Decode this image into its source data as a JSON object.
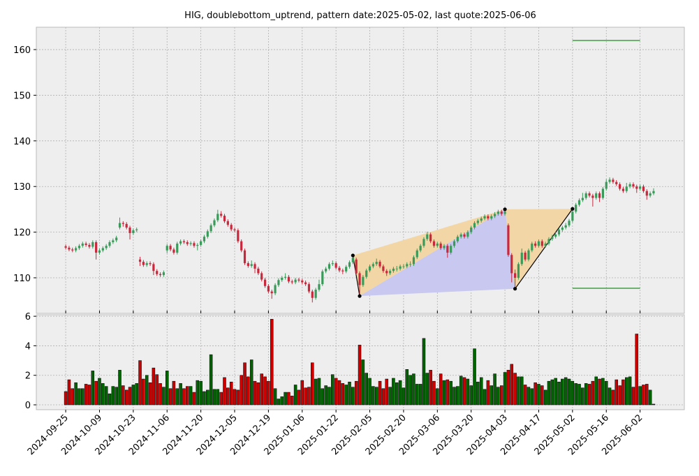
{
  "chart_data": {
    "type": "candlestick",
    "title": "HIG, doublebottom_uptrend, pattern date:2025-05-02, last quote:2025-06-06",
    "categories": [
      "2024-09-25",
      null,
      null,
      null,
      null,
      null,
      null,
      null,
      null,
      null,
      "2024-10-09",
      null,
      null,
      null,
      null,
      null,
      null,
      null,
      null,
      null,
      "2024-10-23",
      null,
      null,
      null,
      null,
      null,
      null,
      null,
      null,
      null,
      "2024-11-06",
      null,
      null,
      null,
      null,
      null,
      null,
      null,
      null,
      null,
      "2024-11-20",
      null,
      null,
      null,
      null,
      null,
      null,
      null,
      null,
      null,
      "2024-12-05",
      null,
      null,
      null,
      null,
      null,
      null,
      null,
      null,
      null,
      "2024-12-19",
      null,
      null,
      null,
      null,
      null,
      null,
      null,
      null,
      null,
      "2025-01-06",
      null,
      null,
      null,
      null,
      null,
      null,
      null,
      null,
      null,
      "2025-01-22",
      null,
      null,
      null,
      null,
      null,
      null,
      null,
      null,
      null,
      "2025-02-05",
      null,
      null,
      null,
      null,
      null,
      null,
      null,
      null,
      null,
      "2025-02-20",
      null,
      null,
      null,
      null,
      null,
      null,
      null,
      null,
      null,
      "2025-03-06",
      null,
      null,
      null,
      null,
      null,
      null,
      null,
      null,
      null,
      "2025-03-20",
      null,
      null,
      null,
      null,
      null,
      null,
      null,
      null,
      null,
      "2025-04-03",
      null,
      null,
      null,
      null,
      null,
      null,
      null,
      null,
      null,
      "2025-04-17",
      null,
      null,
      null,
      null,
      null,
      null,
      null,
      null,
      null,
      "2025-05-02",
      null,
      null,
      null,
      null,
      null,
      null,
      null,
      null,
      null,
      "2025-05-16",
      null,
      null,
      null,
      null,
      null,
      null,
      null,
      null,
      null,
      "2025-06-02",
      null,
      null,
      null,
      null
    ],
    "open": [
      116.9,
      116.6,
      116.2,
      116.0,
      116.5,
      117.0,
      117.5,
      117.2,
      116.8,
      117.8,
      115.5,
      116.0,
      116.5,
      117.0,
      117.8,
      118.2,
      121.0,
      122.0,
      121.8,
      121.0,
      119.8,
      120.4,
      114.0,
      113.5,
      112.8,
      113.2,
      113.0,
      111.5,
      110.8,
      110.6,
      116.0,
      117.0,
      116.2,
      115.5,
      117.5,
      118.0,
      117.8,
      117.4,
      117.6,
      117.0,
      117.2,
      118.0,
      119.0,
      120.2,
      121.5,
      122.6,
      124.0,
      123.6,
      122.4,
      121.6,
      120.6,
      120.4,
      118.0,
      116.0,
      113.2,
      112.6,
      113.0,
      112.0,
      111.0,
      109.6,
      108.2,
      107.0,
      106.6,
      108.4,
      109.5,
      110.0,
      110.2,
      109.2,
      109.0,
      109.6,
      109.4,
      109.0,
      108.6,
      107.0,
      105.6,
      107.4,
      108.6,
      111.4,
      112.0,
      113.0,
      113.2,
      112.2,
      111.6,
      111.4,
      112.4,
      113.4,
      114.0,
      111.0,
      108.4,
      110.2,
      111.6,
      112.5,
      113.0,
      113.5,
      112.5,
      111.5,
      111.0,
      111.5,
      112.0,
      112.0,
      112.5,
      112.5,
      113.0,
      113.0,
      114.5,
      116.0,
      117.0,
      118.5,
      119.5,
      118.0,
      117.0,
      117.5,
      116.5,
      117.0,
      115.5,
      117.0,
      118.0,
      119.0,
      119.5,
      119.0,
      120.0,
      121.0,
      122.0,
      122.5,
      123.0,
      123.5,
      123.0,
      123.5,
      124.0,
      124.5,
      124.0,
      121.5,
      115.0,
      111.0,
      110.0,
      113.0,
      115.5,
      114.0,
      116.0,
      117.5,
      117.0,
      118.0,
      117.0,
      117.5,
      118.5,
      119.0,
      119.5,
      120.5,
      121.0,
      121.5,
      122.5,
      124.5,
      126.0,
      127.0,
      127.5,
      128.5,
      128.0,
      127.5,
      128.5,
      127.5,
      129.5,
      131.0,
      131.5,
      131.0,
      130.5,
      129.5,
      129.0,
      130.0,
      130.5,
      130.0,
      129.5,
      130.0,
      129.0,
      128.0,
      128.5
    ],
    "high": [
      117.3,
      117.0,
      116.6,
      116.9,
      117.4,
      117.9,
      117.9,
      117.6,
      118.2,
      118.2,
      116.4,
      116.9,
      117.4,
      118.2,
      118.6,
      119.2,
      123.2,
      122.4,
      122.2,
      121.4,
      120.8,
      121.0,
      114.6,
      113.9,
      113.6,
      113.6,
      113.4,
      111.9,
      111.2,
      111.6,
      117.4,
      117.4,
      116.6,
      117.9,
      118.4,
      118.4,
      118.2,
      118.0,
      118.0,
      117.6,
      118.4,
      119.4,
      120.6,
      121.9,
      123.0,
      124.9,
      124.6,
      124.0,
      122.8,
      122.0,
      121.0,
      120.8,
      118.4,
      116.4,
      113.6,
      113.8,
      113.4,
      112.4,
      111.4,
      110.0,
      108.6,
      107.4,
      108.8,
      109.9,
      110.4,
      111.0,
      110.6,
      109.6,
      110.0,
      110.0,
      109.8,
      109.4,
      109.0,
      107.4,
      107.8,
      109.6,
      111.8,
      112.4,
      113.4,
      113.8,
      113.6,
      112.6,
      112.0,
      112.8,
      113.8,
      114.9,
      114.4,
      111.4,
      110.6,
      112.0,
      112.9,
      113.4,
      114.2,
      113.9,
      112.9,
      111.9,
      111.9,
      112.4,
      112.6,
      112.9,
      113.0,
      113.4,
      113.6,
      114.9,
      116.4,
      117.4,
      118.9,
      120.1,
      119.9,
      118.4,
      117.9,
      117.9,
      117.4,
      117.4,
      117.4,
      118.4,
      119.4,
      119.9,
      119.9,
      120.4,
      121.4,
      122.4,
      122.9,
      123.4,
      123.9,
      123.9,
      123.9,
      124.4,
      124.9,
      124.9,
      125.0,
      121.9,
      115.4,
      111.8,
      113.4,
      116.4,
      115.9,
      116.4,
      117.9,
      118.0,
      118.4,
      118.4,
      117.9,
      118.9,
      119.4,
      120.0,
      120.9,
      121.4,
      122.0,
      122.9,
      125.1,
      126.4,
      127.4,
      128.6,
      128.9,
      128.9,
      128.4,
      128.9,
      128.9,
      129.9,
      131.6,
      132.0,
      131.9,
      131.4,
      130.9,
      129.9,
      130.8,
      130.9,
      130.9,
      130.4,
      130.4,
      130.4,
      129.4,
      128.9,
      129.6
    ],
    "low": [
      116.2,
      115.8,
      115.6,
      115.6,
      116.1,
      116.6,
      116.8,
      116.4,
      116.4,
      114.0,
      115.1,
      115.6,
      116.1,
      116.6,
      117.4,
      117.8,
      120.6,
      121.2,
      120.6,
      118.4,
      119.4,
      120.0,
      112.6,
      112.4,
      112.4,
      112.6,
      110.6,
      110.4,
      110.2,
      110.2,
      115.4,
      115.8,
      115.1,
      115.1,
      117.1,
      117.4,
      117.0,
      117.0,
      116.6,
      116.0,
      116.8,
      117.6,
      118.6,
      119.8,
      121.1,
      122.2,
      123.2,
      122.0,
      121.2,
      120.2,
      120.0,
      117.6,
      115.6,
      112.8,
      112.2,
      112.2,
      111.0,
      110.6,
      109.2,
      107.8,
      106.6,
      105.4,
      106.2,
      108.0,
      109.1,
      109.6,
      108.8,
      108.6,
      108.6,
      109.0,
      108.6,
      108.2,
      106.6,
      104.6,
      105.2,
      107.0,
      108.2,
      111.0,
      111.6,
      112.6,
      111.8,
      111.2,
      110.8,
      111.0,
      112.0,
      113.0,
      110.6,
      106.0,
      108.0,
      109.8,
      111.2,
      112.1,
      112.6,
      112.1,
      111.1,
      110.4,
      110.6,
      111.1,
      111.4,
      111.6,
      112.0,
      112.1,
      112.4,
      112.6,
      114.1,
      115.6,
      116.6,
      118.1,
      117.6,
      116.6,
      116.6,
      116.1,
      116.1,
      114.4,
      115.1,
      116.6,
      117.6,
      118.6,
      118.6,
      118.6,
      119.6,
      120.6,
      121.6,
      122.1,
      122.6,
      122.6,
      122.6,
      123.1,
      123.6,
      123.6,
      123.6,
      114.6,
      109.0,
      107.6,
      109.6,
      112.6,
      113.6,
      113.6,
      115.6,
      116.6,
      116.6,
      116.6,
      116.6,
      117.1,
      118.1,
      118.6,
      119.1,
      120.1,
      120.6,
      121.1,
      122.1,
      124.1,
      125.6,
      126.6,
      127.1,
      127.6,
      125.6,
      127.1,
      126.6,
      127.1,
      129.1,
      130.6,
      130.6,
      130.1,
      129.1,
      128.6,
      128.6,
      129.6,
      129.6,
      128.6,
      129.1,
      128.6,
      127.1,
      127.6,
      128.1
    ],
    "close": [
      116.6,
      116.2,
      116.0,
      116.5,
      117.0,
      117.5,
      117.2,
      116.8,
      117.8,
      115.5,
      116.0,
      116.5,
      117.0,
      117.8,
      118.2,
      118.8,
      122.0,
      121.8,
      121.0,
      119.8,
      120.4,
      120.6,
      113.5,
      112.8,
      113.2,
      113.0,
      111.5,
      110.8,
      110.6,
      111.2,
      117.0,
      116.2,
      115.5,
      117.5,
      118.0,
      117.8,
      117.4,
      117.6,
      117.0,
      117.2,
      118.0,
      119.0,
      120.2,
      121.5,
      122.6,
      124.0,
      123.6,
      122.4,
      121.6,
      120.6,
      120.4,
      118.0,
      116.0,
      113.2,
      112.6,
      113.0,
      112.0,
      111.0,
      109.6,
      108.2,
      107.0,
      106.6,
      108.4,
      109.5,
      110.0,
      110.2,
      109.2,
      109.0,
      109.6,
      109.4,
      109.0,
      108.6,
      107.0,
      105.6,
      107.4,
      108.6,
      111.4,
      112.0,
      113.0,
      113.2,
      112.2,
      111.6,
      111.4,
      112.4,
      113.4,
      114.4,
      111.0,
      108.4,
      110.2,
      111.6,
      112.5,
      113.0,
      113.5,
      112.5,
      111.5,
      111.0,
      111.5,
      112.0,
      112.0,
      112.5,
      112.5,
      113.0,
      113.0,
      114.5,
      116.0,
      117.0,
      118.5,
      119.5,
      118.0,
      117.0,
      117.5,
      116.5,
      117.0,
      115.5,
      117.0,
      118.0,
      119.0,
      119.5,
      119.0,
      120.0,
      121.0,
      122.0,
      122.5,
      123.0,
      123.5,
      123.0,
      123.5,
      124.0,
      124.5,
      124.0,
      124.5,
      115.0,
      111.0,
      110.0,
      113.0,
      115.5,
      114.0,
      116.0,
      117.5,
      117.0,
      118.0,
      117.0,
      117.5,
      118.5,
      119.0,
      119.5,
      120.5,
      121.0,
      121.5,
      122.5,
      124.5,
      126.0,
      127.0,
      127.5,
      128.5,
      128.0,
      127.5,
      128.5,
      127.5,
      129.5,
      131.0,
      131.5,
      131.0,
      130.5,
      129.5,
      129.0,
      130.0,
      130.5,
      130.0,
      129.5,
      130.0,
      129.0,
      128.0,
      128.5,
      129.0
    ],
    "up_color": "#3a9a5a",
    "down_color": "#c8283c",
    "xlim": [
      -8.7,
      183.1
    ],
    "ylim": [
      102.2,
      164.9
    ],
    "yticks": [
      110,
      120,
      130,
      140,
      150,
      160
    ],
    "grid": true,
    "pattern": {
      "x": [
        85,
        87,
        130,
        133,
        150
      ],
      "y": [
        114.9,
        106.0,
        125.0,
        107.6,
        125.1
      ],
      "fill_color": "#f3d6a6",
      "inner_color": "#c8c8f0",
      "line_color": "#000000"
    },
    "levels": [
      162.0,
      107.7
    ],
    "level_x": [
      150,
      170
    ],
    "level_color": "#228b22",
    "volume": {
      "values": [
        0.9,
        1.7,
        1.1,
        1.5,
        1.1,
        1.1,
        1.4,
        1.35,
        2.3,
        1.6,
        1.8,
        1.45,
        1.25,
        0.75,
        1.25,
        1.2,
        2.35,
        1.3,
        1.0,
        1.2,
        1.35,
        1.45,
        3.0,
        1.75,
        2.0,
        1.5,
        2.5,
        2.05,
        1.45,
        1.2,
        2.3,
        1.1,
        1.6,
        1.1,
        1.45,
        1.1,
        1.25,
        1.25,
        0.85,
        1.65,
        1.6,
        0.9,
        1.0,
        3.4,
        1.05,
        1.05,
        0.85,
        1.85,
        1.15,
        1.55,
        1.05,
        1.0,
        2.0,
        2.85,
        1.9,
        3.05,
        1.6,
        1.5,
        2.1,
        1.9,
        1.6,
        5.8,
        1.1,
        0.4,
        0.55,
        0.85,
        0.85,
        0.6,
        1.35,
        1.0,
        1.65,
        1.15,
        1.2,
        2.85,
        1.75,
        1.8,
        1.1,
        1.3,
        1.2,
        2.05,
        1.8,
        1.65,
        1.45,
        1.35,
        1.55,
        1.2,
        1.6,
        4.05,
        3.05,
        2.15,
        1.8,
        1.25,
        1.2,
        1.6,
        1.1,
        1.75,
        1.2,
        1.8,
        1.5,
        1.65,
        1.15,
        2.4,
        2.0,
        2.1,
        1.4,
        1.4,
        4.5,
        2.15,
        2.35,
        1.6,
        1.1,
        2.1,
        1.65,
        1.7,
        1.6,
        1.2,
        1.25,
        1.95,
        1.85,
        1.75,
        1.3,
        3.8,
        1.55,
        1.85,
        1.05,
        1.65,
        1.3,
        2.1,
        1.2,
        1.3,
        2.2,
        2.35,
        2.75,
        2.15,
        1.9,
        1.9,
        1.35,
        1.2,
        1.1,
        1.5,
        1.4,
        1.3,
        1.0,
        1.6,
        1.7,
        1.8,
        1.55,
        1.75,
        1.85,
        1.75,
        1.6,
        1.45,
        1.4,
        1.15,
        1.45,
        1.4,
        1.6,
        1.9,
        1.75,
        1.8,
        1.6,
        1.15,
        1.0,
        1.7,
        1.3,
        1.7,
        1.85,
        1.9,
        1.2,
        4.8,
        1.25,
        1.35,
        1.4,
        1.0,
        0.05
      ],
      "ylim": [
        -0.33,
        6.1
      ],
      "yticks": [
        0,
        2,
        4,
        6
      ],
      "up_color": "#006400",
      "down_color": "#cc0000"
    }
  }
}
